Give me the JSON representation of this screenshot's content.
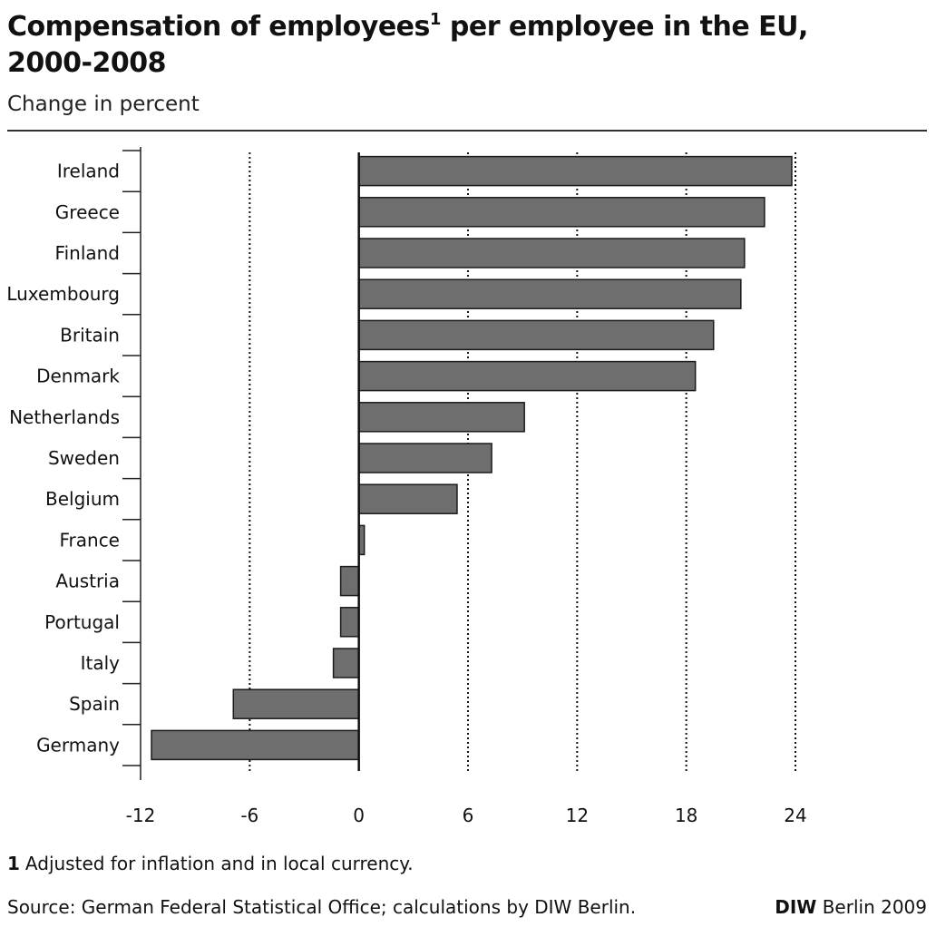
{
  "header": {
    "title_main": "Compensation of employees",
    "title_sup": "1",
    "title_rest": " per employee in the EU,",
    "title_line2": "2000-2008",
    "subtitle": "Change in percent"
  },
  "footer": {
    "footnote_marker": "1",
    "footnote_text": "Adjusted for inflation and in local currency.",
    "source": "Source: German Federal Statistical Office; calculations by DIW Berlin.",
    "credit_bold": "DIW",
    "credit_rest": " Berlin 2009"
  },
  "chart_data": {
    "type": "bar",
    "orientation": "horizontal",
    "title": "Compensation of employees per employee in the EU, 2000-2008",
    "subtitle": "Change in percent",
    "categories": [
      "Ireland",
      "Greece",
      "Finland",
      "Luxembourg",
      "Britain",
      "Denmark",
      "Netherlands",
      "Sweden",
      "Belgium",
      "France",
      "Austria",
      "Portugal",
      "Italy",
      "Spain",
      "Germany"
    ],
    "values": [
      23.8,
      22.3,
      21.2,
      21.0,
      19.5,
      18.5,
      9.1,
      7.3,
      5.4,
      0.3,
      -1.0,
      -1.0,
      -1.4,
      -6.9,
      -11.4
    ],
    "xlim": [
      -12,
      24
    ],
    "xticks": [
      -12,
      -6,
      0,
      6,
      12,
      18,
      24
    ],
    "grid": "vertical dotted",
    "bar_color": "#6e6e6e"
  }
}
